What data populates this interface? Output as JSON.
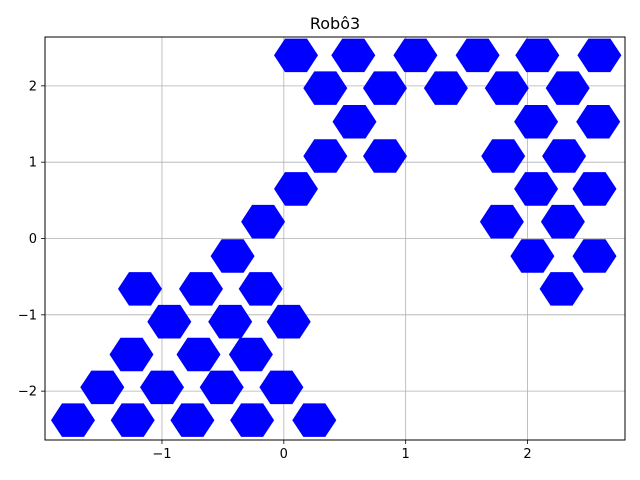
{
  "chart_data": {
    "type": "scatter",
    "title": "Robô3",
    "xlabel": "",
    "ylabel": "",
    "xlim": [
      -1.96,
      2.8
    ],
    "ylim": [
      -2.64,
      2.64
    ],
    "grid": true,
    "xticks": [
      -1,
      0,
      1,
      2
    ],
    "yticks": [
      -2,
      -1,
      0,
      1,
      2
    ],
    "xtick_labels": [
      "−1",
      "0",
      "1",
      "2"
    ],
    "ytick_labels": [
      "−2",
      "−1",
      "0",
      "1",
      "2"
    ],
    "marker": "hexagon",
    "marker_color": "#0000ff",
    "series": [
      {
        "x": [
          -1.73,
          -1.24,
          -0.75,
          -0.26,
          0.25,
          -1.49,
          -1.0,
          -0.51,
          -0.02,
          -1.25,
          -0.7,
          -0.27,
          -0.94,
          -0.44,
          0.04,
          -1.18,
          -0.68,
          -0.19,
          -0.42,
          -0.17,
          0.1,
          0.34,
          0.83,
          0.58,
          0.34,
          0.83,
          1.33,
          1.83,
          2.33,
          0.1,
          0.57,
          1.08,
          1.59,
          2.08,
          2.59,
          2.07,
          2.58,
          1.8,
          2.3,
          2.07,
          2.55,
          1.79,
          2.29,
          2.04,
          2.55,
          2.28
        ],
        "y": [
          -2.38,
          -2.38,
          -2.38,
          -2.38,
          -2.38,
          -1.95,
          -1.95,
          -1.95,
          -1.95,
          -1.52,
          -1.52,
          -1.52,
          -1.09,
          -1.09,
          -1.09,
          -0.66,
          -0.66,
          -0.66,
          -0.23,
          0.22,
          0.65,
          1.08,
          1.08,
          1.53,
          1.97,
          1.97,
          1.97,
          1.97,
          1.97,
          2.4,
          2.4,
          2.4,
          2.4,
          2.4,
          2.4,
          1.53,
          1.53,
          1.08,
          1.08,
          0.65,
          0.65,
          0.22,
          0.22,
          -0.23,
          -0.23,
          -0.66
        ]
      }
    ]
  }
}
